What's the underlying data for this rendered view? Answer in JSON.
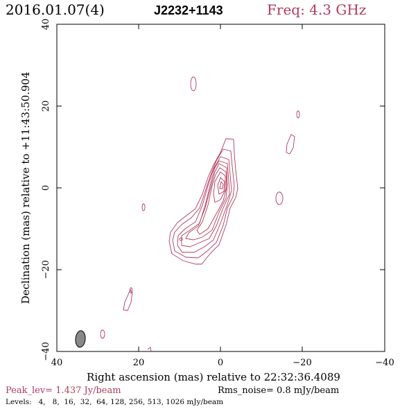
{
  "header": {
    "date": "2016.01.07(4)",
    "source": "J2232+1143",
    "freq": "Freq: 4.3 GHz"
  },
  "axes": {
    "xlabel": "Right ascension (mas) relative to 22:32:36.4089",
    "ylabel": "Declination (mas) relative to +11:43:50.904",
    "x_range": [
      40,
      -40
    ],
    "y_range": [
      -40,
      40
    ],
    "x_ticks": [
      "40",
      "20",
      "0",
      "−20",
      "−40"
    ],
    "y_ticks": [
      "40",
      "20",
      "0",
      "−20",
      "−40"
    ]
  },
  "footer": {
    "peak": "Peak_lev=  1.437 Jy/beam",
    "rms": "Rms_noise=  0.8 mJy/beam",
    "levels": "Levels:   4,   8,  16,  32,  64, 128, 256, 513, 1026 mJy/beam"
  },
  "colors": {
    "contour": "#b03a5b",
    "title_accent": "#b03a5b",
    "axis": "#000000",
    "beam_fill": "#888888"
  }
}
